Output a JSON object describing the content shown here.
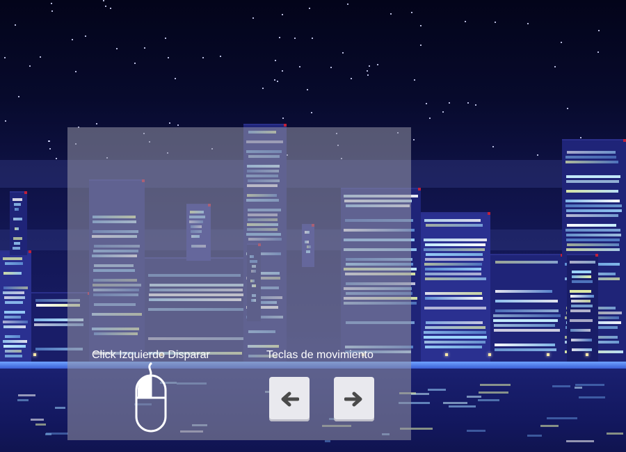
{
  "instructions": {
    "shoot_label": "Click Izquierdo Disparar",
    "move_label": "Teclas de movimiento",
    "left_key_glyph": "🡄",
    "right_key_glyph": "🡆"
  },
  "icons": {
    "mouse": "mouse-icon",
    "left_arrow": "arrow-left-icon",
    "right_arrow": "arrow-right-icon"
  },
  "colors": {
    "sky_top": "#03041a",
    "city": "#1f2478",
    "overlay": "rgba(150,150,165,0.55)",
    "window_glow": "#9fd7ff"
  }
}
